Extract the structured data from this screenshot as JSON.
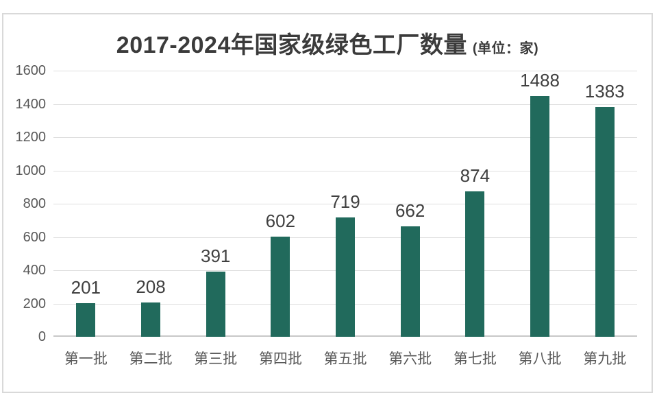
{
  "header": {
    "title": "2017-2024年国家级绿色工厂数量",
    "unit_suffix": "(单位：家)"
  },
  "chart_data": {
    "type": "bar",
    "title": "2017-2024年国家级绿色工厂数量",
    "subtitle_unit": "(单位：家)",
    "categories": [
      "第一批",
      "第二批",
      "第三批",
      "第四批",
      "第五批",
      "第六批",
      "第七批",
      "第八批",
      "第九批"
    ],
    "values": [
      201,
      208,
      391,
      602,
      719,
      662,
      874,
      1488,
      1383
    ],
    "data_labels_shown": true,
    "xlabel": "",
    "ylabel": "",
    "ylim": [
      0,
      1600
    ],
    "yticks": [
      0,
      200,
      400,
      600,
      800,
      1000,
      1200,
      1400,
      1600
    ],
    "grid": true,
    "legend": "none",
    "colors": {
      "bar": "#216a5c",
      "title_text": "#3b3b3b",
      "value_label_text": "#404040",
      "axis_label_text": "#595959",
      "gridline": "#dedede",
      "zero_axis_line": "#c8c8c8",
      "frame_border": "#d9d9d9",
      "background": "#ffffff"
    }
  }
}
